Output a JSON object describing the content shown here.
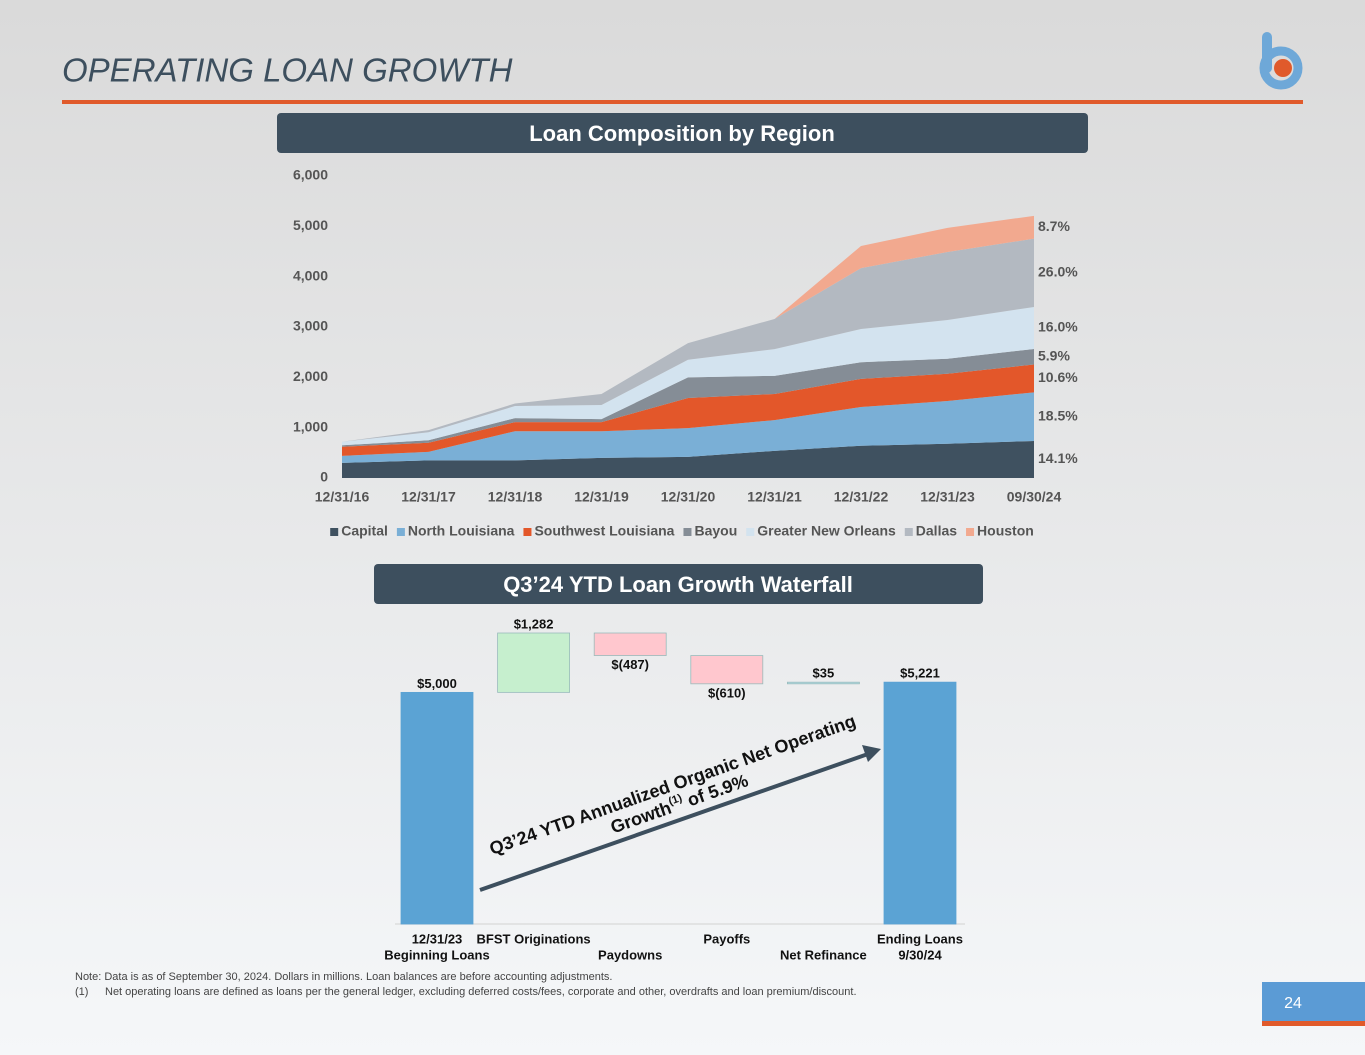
{
  "slide": {
    "title": "OPERATING LOAN GROWTH",
    "page_number": "24",
    "notes": [
      "Note: Data is as of September 30, 2024. Dollars in millions. Loan balances are before accounting adjustments."
    ],
    "footnote": {
      "marker": "(1)",
      "text": "Net operating loans are defined as loans per the general ledger, excluding deferred costs/fees, corporate and other, overdrafts and loan premium/discount."
    }
  },
  "chart_data": [
    {
      "type": "area",
      "stacked": true,
      "title": "Loan Composition by Region",
      "categories": [
        "12/31/16",
        "12/31/17",
        "12/31/18",
        "12/31/19",
        "12/31/20",
        "12/31/21",
        "12/31/22",
        "12/31/23",
        "09/30/24"
      ],
      "ylim": [
        0,
        6000
      ],
      "yticks": [
        0,
        {
          "value": 1000,
          "label": "1,000"
        },
        {
          "value": 2000,
          "label": "2,000"
        },
        {
          "value": 3000,
          "label": "3,000"
        },
        {
          "value": 4000,
          "label": "4,000"
        },
        {
          "value": 5000,
          "label": "5,000"
        },
        {
          "value": 6000,
          "label": "6,000"
        }
      ],
      "grid": false,
      "legend": "bottom",
      "series": [
        {
          "name": "Capital",
          "color": "#3f5160",
          "values": [
            300,
            350,
            350,
            400,
            420,
            540,
            640,
            680,
            736
          ],
          "share_label": "14.1%"
        },
        {
          "name": "North Louisiana",
          "color": "#7aafd6",
          "values": [
            140,
            170,
            580,
            530,
            570,
            610,
            770,
            850,
            966
          ],
          "share_label": "18.5%"
        },
        {
          "name": "Southwest Louisiana",
          "color": "#e3572a",
          "values": [
            180,
            180,
            180,
            180,
            600,
            520,
            560,
            540,
            553
          ],
          "share_label": "10.6%"
        },
        {
          "name": "Bayou",
          "color": "#858d96",
          "values": [
            30,
            50,
            80,
            60,
            410,
            360,
            330,
            300,
            308
          ],
          "share_label": "5.9%"
        },
        {
          "name": "Greater New Orleans",
          "color": "#d3e3ef",
          "values": [
            70,
            160,
            240,
            280,
            350,
            530,
            660,
            770,
            835
          ],
          "share_label": "16.0%"
        },
        {
          "name": "Dallas",
          "color": "#b3b9c1",
          "values": [
            0,
            40,
            50,
            220,
            330,
            600,
            1210,
            1350,
            1357
          ],
          "share_label": "26.0%"
        },
        {
          "name": "Houston",
          "color": "#f2a98f",
          "values": [
            0,
            0,
            0,
            0,
            0,
            0,
            440,
            480,
            454
          ],
          "share_label": "8.7%"
        }
      ]
    },
    {
      "type": "waterfall",
      "title": "Q3’24 YTD Loan Growth Waterfall",
      "categories": [
        [
          "12/31/23",
          "Beginning Loans"
        ],
        [
          "BFST Originations"
        ],
        [
          "Paydowns"
        ],
        [
          "Payoffs"
        ],
        [
          "Net Refinance"
        ],
        [
          "Ending Loans",
          "9/30/24"
        ]
      ],
      "values": [
        5000,
        1282,
        -487,
        -610,
        35,
        5221
      ],
      "value_labels": [
        "$5,000",
        "$1,282",
        "$(487)",
        "$(610)",
        "$35",
        "$5,221"
      ],
      "colors": [
        "#5ba3d4",
        "#c6efce",
        "#ffc7ce",
        "#ffc7ce",
        "#b7dee8",
        "#5ba3d4"
      ],
      "annotation": {
        "line1": "Q3’24 YTD Annualized Organic Net Operating",
        "line2_start": "Growth",
        "line2_sup": "(1)",
        "line2_end": " of 5.9%"
      }
    }
  ]
}
